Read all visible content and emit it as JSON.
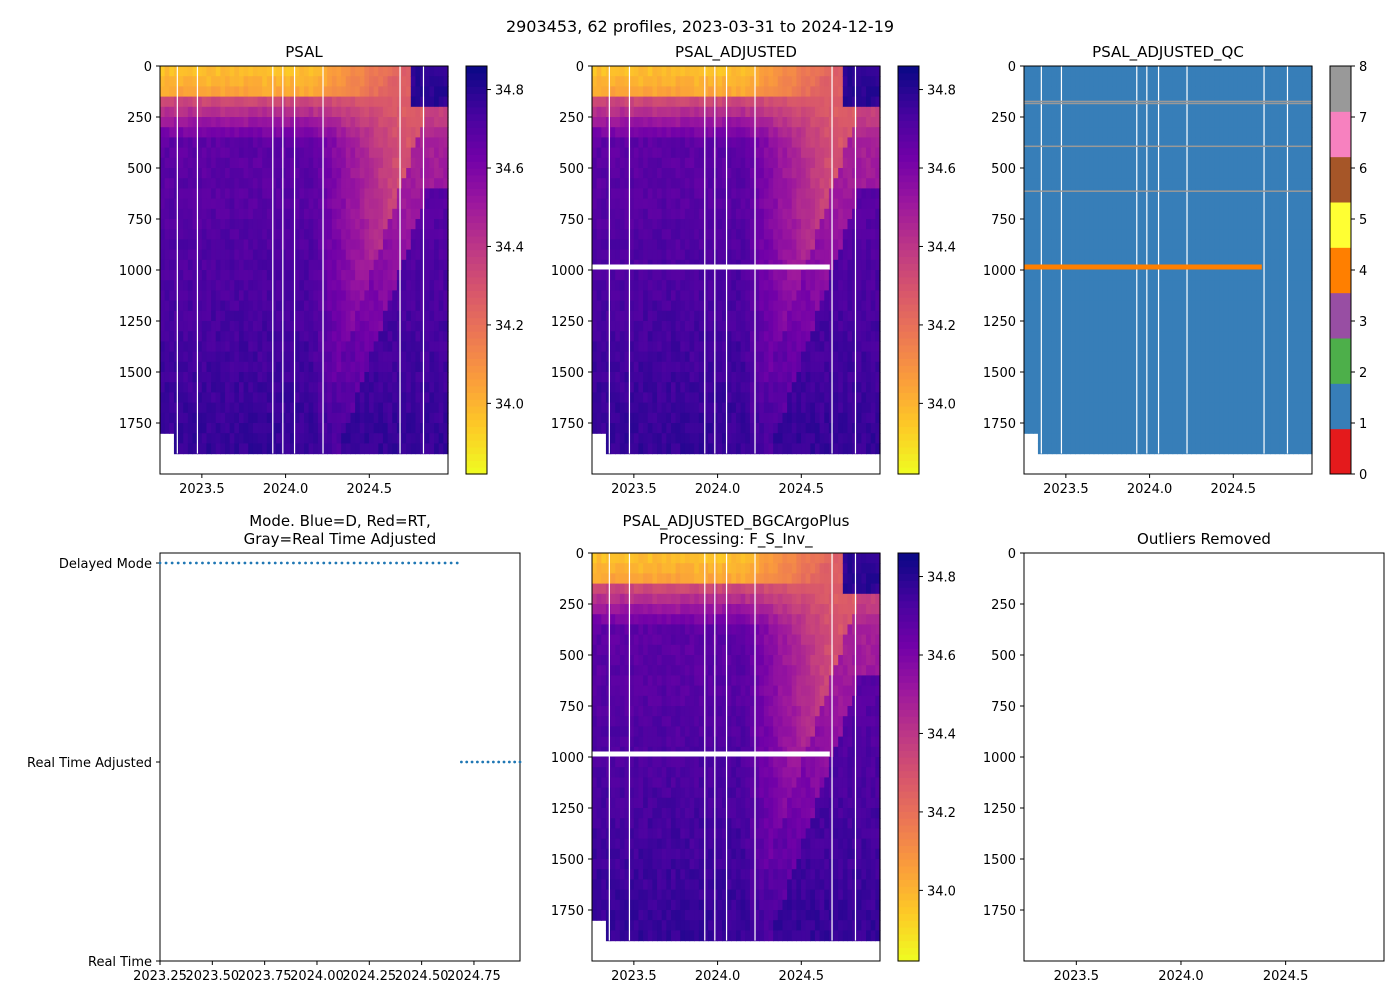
{
  "figure_title": "2903453, 62 profiles, 2023-03-31 to 2024-12-19",
  "chart_data": [
    {
      "id": "psal",
      "type": "heatmap",
      "title_lines": [
        "PSAL"
      ],
      "xlim": [
        2023.25,
        2024.97
      ],
      "x_ticks": [
        2023.5,
        2024.0,
        2024.5
      ],
      "x_tick_labels": [
        "2023.5",
        "2024.0",
        "2024.5"
      ],
      "ylim": [
        2000,
        0
      ],
      "y_ticks": [
        0,
        250,
        500,
        750,
        1000,
        1250,
        1500,
        1750
      ],
      "y_tick_labels": [
        "0",
        "250",
        "500",
        "750",
        "1000",
        "1250",
        "1500",
        "1750"
      ],
      "colorbar": {
        "range": [
          33.82,
          34.86
        ],
        "ticks": [
          34.0,
          34.2,
          34.4,
          34.6,
          34.8
        ],
        "tick_labels": [
          "34.0",
          "34.2",
          "34.4",
          "34.6",
          "34.8"
        ],
        "colormap": "plasma_r"
      },
      "qc_gap_depth": null,
      "bottom_depth": 1900
    },
    {
      "id": "psal_adjusted",
      "type": "heatmap",
      "title_lines": [
        "PSAL_ADJUSTED"
      ],
      "xlim": [
        2023.25,
        2024.97
      ],
      "x_ticks": [
        2023.5,
        2024.0,
        2024.5
      ],
      "x_tick_labels": [
        "2023.5",
        "2024.0",
        "2024.5"
      ],
      "ylim": [
        2000,
        0
      ],
      "y_ticks": [
        0,
        250,
        500,
        750,
        1000,
        1250,
        1500,
        1750
      ],
      "y_tick_labels": [
        "0",
        "250",
        "500",
        "750",
        "1000",
        "1250",
        "1500",
        "1750"
      ],
      "colorbar": {
        "range": [
          33.82,
          34.86
        ],
        "ticks": [
          34.0,
          34.2,
          34.4,
          34.6,
          34.8
        ],
        "tick_labels": [
          "34.0",
          "34.2",
          "34.4",
          "34.6",
          "34.8"
        ],
        "colormap": "plasma_r"
      },
      "qc_gap_depth": 985,
      "qc_gap_end_x": 2024.67,
      "bottom_depth": 1900
    },
    {
      "id": "psal_adjusted_qc",
      "type": "heatmap",
      "title_lines": [
        "PSAL_ADJUSTED_QC"
      ],
      "xlim": [
        2023.25,
        2024.97
      ],
      "x_ticks": [
        2023.5,
        2024.0,
        2024.5
      ],
      "x_tick_labels": [
        "2023.5",
        "2024.0",
        "2024.5"
      ],
      "ylim": [
        2000,
        0
      ],
      "y_ticks": [
        0,
        250,
        500,
        750,
        1000,
        1250,
        1500,
        1750
      ],
      "y_tick_labels": [
        "0",
        "250",
        "500",
        "750",
        "1000",
        "1250",
        "1500",
        "1750"
      ],
      "dominant_flag": 1,
      "flag4_depth": 985,
      "flag4_end_x": 2024.67,
      "bottom_depth": 1900,
      "colorbar": {
        "range": [
          0,
          8
        ],
        "ticks": [
          0,
          1,
          2,
          3,
          4,
          5,
          6,
          7,
          8
        ],
        "tick_labels": [
          "0",
          "1",
          "2",
          "3",
          "4",
          "5",
          "6",
          "7",
          "8"
        ],
        "categories": [
          {
            "flag": 0,
            "color": "#e41a1c"
          },
          {
            "flag": 1,
            "color": "#377eb8"
          },
          {
            "flag": 2,
            "color": "#4daf4a"
          },
          {
            "flag": 3,
            "color": "#984ea3"
          },
          {
            "flag": 4,
            "color": "#ff7f00"
          },
          {
            "flag": 5,
            "color": "#ffff33"
          },
          {
            "flag": 6,
            "color": "#a65628"
          },
          {
            "flag": 7,
            "color": "#f781bf"
          },
          {
            "flag": 8,
            "color": "#999999"
          }
        ]
      }
    },
    {
      "id": "mode",
      "type": "scatter",
      "title_lines": [
        "Mode. Blue=D, Red=RT,",
        "Gray=Real Time Adjusted"
      ],
      "xlim": [
        2023.25,
        2024.97
      ],
      "x_ticks": [
        2023.25,
        2023.5,
        2023.75,
        2024.0,
        2024.25,
        2024.5,
        2024.75
      ],
      "x_tick_labels": [
        "2023.25",
        "2023.50",
        "2023.75",
        "2024.00",
        "2024.25",
        "2024.50",
        "2024.75"
      ],
      "y_categories": [
        "Delayed Mode",
        "Real Time Adjusted",
        "Real Time"
      ],
      "series": [
        {
          "name": "Delayed Mode",
          "level": 0,
          "color": "#1f77b4",
          "x_start": 2023.25,
          "x_end": 2024.67,
          "count": 50
        },
        {
          "name": "Real Time Adjusted",
          "level": 1,
          "color": "#1f77b4",
          "x_start": 2024.69,
          "x_end": 2024.97,
          "count": 12
        }
      ]
    },
    {
      "id": "psal_adjusted_bgc",
      "type": "heatmap",
      "title_lines": [
        "PSAL_ADJUSTED_BGCArgoPlus",
        "Processing: F_S_Inv_"
      ],
      "xlim": [
        2023.25,
        2024.97
      ],
      "x_ticks": [
        2023.5,
        2024.0,
        2024.5
      ],
      "x_tick_labels": [
        "2023.5",
        "2024.0",
        "2024.5"
      ],
      "ylim": [
        2000,
        0
      ],
      "y_ticks": [
        0,
        250,
        500,
        750,
        1000,
        1250,
        1500,
        1750
      ],
      "y_tick_labels": [
        "0",
        "250",
        "500",
        "750",
        "1000",
        "1250",
        "1500",
        "1750"
      ],
      "colorbar": {
        "range": [
          33.82,
          34.86
        ],
        "ticks": [
          34.0,
          34.2,
          34.4,
          34.6,
          34.8
        ],
        "tick_labels": [
          "34.0",
          "34.2",
          "34.4",
          "34.6",
          "34.8"
        ],
        "colormap": "plasma_r"
      },
      "qc_gap_depth": 985,
      "qc_gap_end_x": 2024.67,
      "bottom_depth": 1900
    },
    {
      "id": "outliers",
      "type": "scatter",
      "title_lines": [
        "Outliers Removed"
      ],
      "xlim": [
        2023.25,
        2024.97
      ],
      "x_ticks": [
        2023.5,
        2024.0,
        2024.5
      ],
      "x_tick_labels": [
        "2023.5",
        "2024.0",
        "2024.5"
      ],
      "ylim": [
        2000,
        0
      ],
      "y_ticks": [
        0,
        250,
        500,
        750,
        1000,
        1250,
        1500,
        1750
      ],
      "y_tick_labels": [
        "0",
        "250",
        "500",
        "750",
        "1000",
        "1250",
        "1500",
        "1750"
      ],
      "series": []
    }
  ]
}
